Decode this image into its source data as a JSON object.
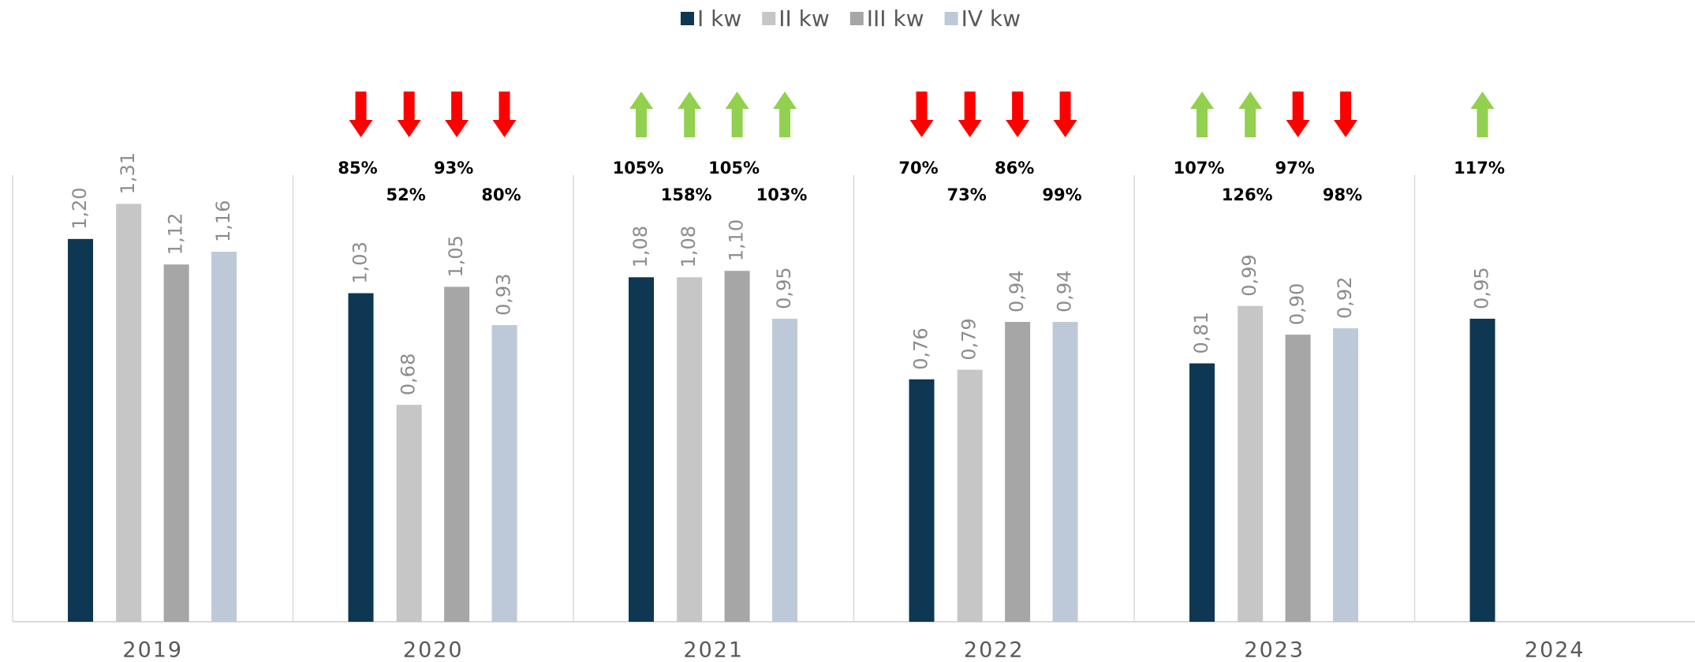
{
  "chart_data": {
    "type": "bar",
    "categories": [
      "2019",
      "2020",
      "2021",
      "2022",
      "2023",
      "2024"
    ],
    "ylim": [
      0,
      1.4
    ],
    "legend": "top",
    "arrow_colors": {
      "up": "#92d050",
      "down": "#ff0000"
    },
    "series": [
      {
        "name": "I kw",
        "color": "#0d3752",
        "values": [
          1.2,
          1.03,
          1.08,
          0.76,
          0.81,
          0.95
        ],
        "value_labels": [
          "1,20",
          "1,03",
          "1,08",
          "0,76",
          "0,81",
          "0,95"
        ],
        "changes": [
          null,
          85,
          105,
          70,
          107,
          117
        ],
        "change_labels": [
          null,
          "85%",
          "105%",
          "70%",
          "107%",
          "117%"
        ],
        "change_directions": [
          null,
          "down",
          "up",
          "down",
          "up",
          "up"
        ]
      },
      {
        "name": "II kw",
        "color": "#c6c6c6",
        "values": [
          1.31,
          0.68,
          1.08,
          0.79,
          0.99,
          null
        ],
        "value_labels": [
          "1,31",
          "0,68",
          "1,08",
          "0,79",
          "0,99",
          null
        ],
        "changes": [
          null,
          52,
          158,
          73,
          126,
          null
        ],
        "change_labels": [
          null,
          "52%",
          "158%",
          "73%",
          "126%",
          null
        ],
        "change_directions": [
          null,
          "down",
          "up",
          "down",
          "up",
          null
        ]
      },
      {
        "name": "III kw",
        "color": "#a6a6a6",
        "values": [
          1.12,
          1.05,
          1.1,
          0.94,
          0.9,
          null
        ],
        "value_labels": [
          "1,12",
          "1,05",
          "1,10",
          "0,94",
          "0,90",
          null
        ],
        "changes": [
          null,
          93,
          105,
          86,
          97,
          null
        ],
        "change_labels": [
          null,
          "93%",
          "105%",
          "86%",
          "97%",
          null
        ],
        "change_directions": [
          null,
          "down",
          "up",
          "down",
          "down",
          null
        ]
      },
      {
        "name": "IV kw",
        "color": "#bdc9d8",
        "values": [
          1.16,
          0.93,
          0.95,
          0.94,
          0.92,
          null
        ],
        "value_labels": [
          "1,16",
          "0,93",
          "0,95",
          "0,94",
          "0,92",
          null
        ],
        "changes": [
          null,
          80,
          103,
          99,
          98,
          null
        ],
        "change_labels": [
          null,
          "80%",
          "103%",
          "99%",
          "98%",
          null
        ],
        "change_directions": [
          null,
          "down",
          "up",
          "down",
          "down",
          null
        ]
      }
    ]
  }
}
